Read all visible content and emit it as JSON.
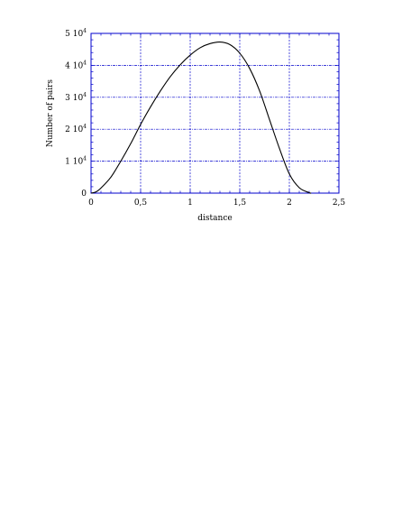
{
  "chart_data": {
    "type": "line",
    "title": "",
    "xlabel": "distance",
    "ylabel": "Number of pairs",
    "xlim": [
      0,
      2.5
    ],
    "ylim": [
      0,
      50000
    ],
    "grid": true,
    "legend": "none",
    "x_ticks": [
      {
        "value": 0,
        "label": "0"
      },
      {
        "value": 0.5,
        "label": "0,5"
      },
      {
        "value": 1,
        "label": "1"
      },
      {
        "value": 1.5,
        "label": "1,5"
      },
      {
        "value": 2,
        "label": "2"
      },
      {
        "value": 2.5,
        "label": "2,5"
      }
    ],
    "y_ticks": [
      {
        "value": 0,
        "mantissa": "0",
        "exponent": ""
      },
      {
        "value": 10000,
        "mantissa": "1 10",
        "exponent": "4"
      },
      {
        "value": 20000,
        "mantissa": "2 10",
        "exponent": "4"
      },
      {
        "value": 30000,
        "mantissa": "3 10",
        "exponent": "4"
      },
      {
        "value": 40000,
        "mantissa": "4 10",
        "exponent": "4"
      },
      {
        "value": 50000,
        "mantissa": "5 10",
        "exponent": "4"
      }
    ],
    "series": [
      {
        "x": [
          0,
          0.05,
          0.1,
          0.2,
          0.3,
          0.4,
          0.5,
          0.6,
          0.7,
          0.8,
          0.9,
          1.0,
          1.1,
          1.2,
          1.3,
          1.4,
          1.5,
          1.6,
          1.7,
          1.8,
          1.9,
          2.0,
          2.1,
          2.2,
          2.22
        ],
        "y": [
          0,
          400,
          1600,
          5000,
          10000,
          15500,
          21500,
          27000,
          32000,
          36500,
          40200,
          43200,
          45500,
          46800,
          47300,
          46500,
          43800,
          39000,
          32000,
          23000,
          14000,
          6000,
          1700,
          150,
          0
        ]
      }
    ],
    "colors": {
      "line": "#000000",
      "grid": "#0000cc",
      "frame": "#0000cc"
    }
  }
}
